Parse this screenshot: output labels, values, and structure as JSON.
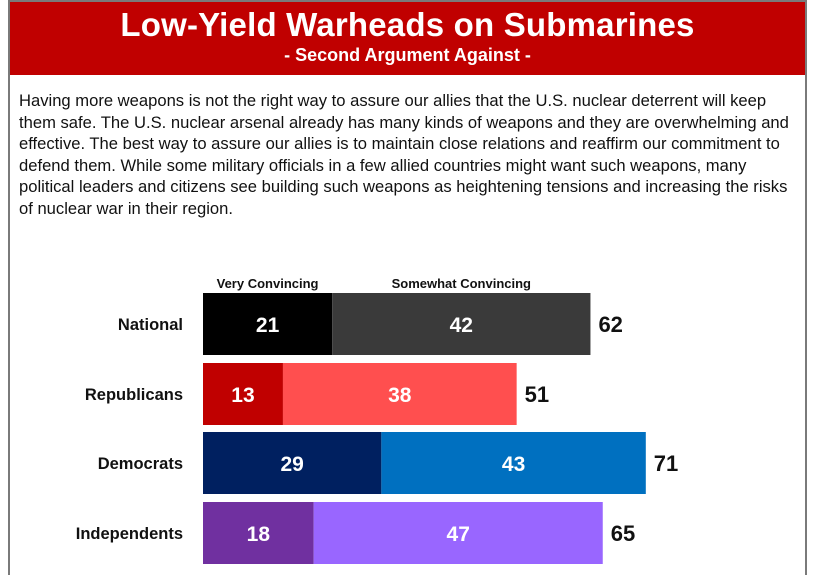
{
  "header": {
    "title": "Low-Yield Warheads on Submarines",
    "subtitle": "- Second Argument Against -"
  },
  "argument_text": "Having more weapons is not the right way to assure our allies that the U.S. nuclear deterrent will keep them safe. The U.S. nuclear arsenal already has many kinds of weapons and they are overwhelming and effective. The best way to assure our allies is to maintain close relations and reaffirm our commitment to defend them. While some military officials in a few allied countries might want such weapons, many political leaders and citizens see building such weapons as heightening tensions and increasing the risks of nuclear war in their region.",
  "chart_data": {
    "type": "bar",
    "orientation": "horizontal",
    "stacked": true,
    "legend": [
      "Very Convincing",
      "Somewhat Convincing"
    ],
    "legend_placement": "top",
    "grid": false,
    "xlim": [
      0,
      100
    ],
    "categories": [
      "National",
      "Republicans",
      "Democrats",
      "Independents"
    ],
    "series": [
      {
        "name": "Very Convincing",
        "values": [
          21,
          13,
          29,
          18
        ],
        "colors": [
          "#000000",
          "#c00000",
          "#002060",
          "#7030a0"
        ]
      },
      {
        "name": "Somewhat Convincing",
        "values": [
          42,
          38,
          43,
          47
        ],
        "colors": [
          "#3a3a3a",
          "#ff4f4f",
          "#0070c0",
          "#9966ff"
        ]
      }
    ],
    "totals": [
      62,
      51,
      71,
      65
    ]
  }
}
